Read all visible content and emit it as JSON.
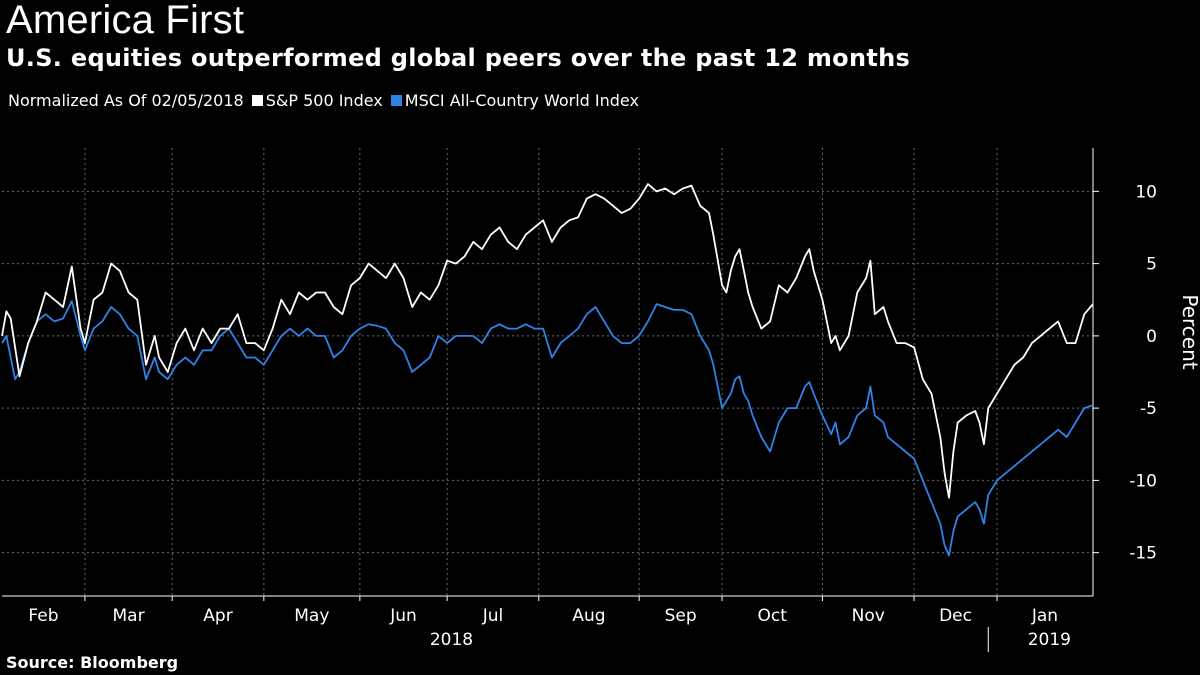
{
  "chart_data": {
    "type": "line",
    "title": "America First",
    "subtitle": "U.S. equities outperformed global peers over the past 12 months",
    "note": "Normalized As Of 02/05/2018",
    "source": "Source: Bloomberg",
    "ylabel": "Percent",
    "xlabel": "",
    "ylim": [
      -18,
      13
    ],
    "yticks": [
      10,
      5,
      0,
      -5,
      -10,
      -15
    ],
    "ytick_labels": [
      "10",
      "5",
      "0",
      "-5",
      "-10",
      "-15"
    ],
    "month_labels": [
      "Feb",
      "Mar",
      "Apr",
      "May",
      "Jun",
      "Jul",
      "Aug",
      "Sep",
      "Oct",
      "Nov",
      "Dec",
      "Jan"
    ],
    "month_start_index": [
      0,
      19,
      39,
      60,
      82,
      102,
      123,
      146,
      165,
      188,
      209,
      228
    ],
    "year_labels": [
      {
        "label": "2018",
        "center_index": 103
      },
      {
        "label": "2019",
        "center_index": 240
      }
    ],
    "year_divider_index": 226,
    "x_count": 251,
    "grid": true,
    "series": [
      {
        "name": "S&P 500 Index",
        "color": "#ffffff",
        "keypoints": [
          [
            0,
            0
          ],
          [
            1,
            1.7
          ],
          [
            2,
            1.2
          ],
          [
            4,
            -2.8
          ],
          [
            6,
            -0.5
          ],
          [
            8,
            1
          ],
          [
            10,
            3
          ],
          [
            12,
            2.5
          ],
          [
            14,
            2
          ],
          [
            16,
            4.8
          ],
          [
            18,
            0.5
          ],
          [
            19,
            -0.5
          ],
          [
            21,
            2.5
          ],
          [
            23,
            3
          ],
          [
            25,
            5
          ],
          [
            27,
            4.5
          ],
          [
            29,
            3
          ],
          [
            31,
            2.5
          ],
          [
            33,
            -2
          ],
          [
            35,
            0
          ],
          [
            36,
            -1.5
          ],
          [
            38,
            -2.5
          ],
          [
            40,
            -0.5
          ],
          [
            42,
            0.5
          ],
          [
            44,
            -1
          ],
          [
            46,
            0.5
          ],
          [
            48,
            -0.5
          ],
          [
            50,
            0.5
          ],
          [
            52,
            0.5
          ],
          [
            54,
            1.5
          ],
          [
            56,
            -0.5
          ],
          [
            58,
            -0.5
          ],
          [
            60,
            -1
          ],
          [
            62,
            0.5
          ],
          [
            64,
            2.5
          ],
          [
            66,
            1.5
          ],
          [
            68,
            3
          ],
          [
            70,
            2.5
          ],
          [
            72,
            3
          ],
          [
            74,
            3
          ],
          [
            76,
            2
          ],
          [
            78,
            1.5
          ],
          [
            80,
            3.5
          ],
          [
            82,
            4
          ],
          [
            84,
            5
          ],
          [
            86,
            4.5
          ],
          [
            88,
            4
          ],
          [
            90,
            5
          ],
          [
            92,
            4
          ],
          [
            94,
            2
          ],
          [
            96,
            3
          ],
          [
            98,
            2.5
          ],
          [
            100,
            3.5
          ],
          [
            102,
            5.2
          ],
          [
            104,
            5
          ],
          [
            106,
            5.5
          ],
          [
            108,
            6.5
          ],
          [
            110,
            6
          ],
          [
            112,
            7
          ],
          [
            114,
            7.5
          ],
          [
            116,
            6.5
          ],
          [
            118,
            6
          ],
          [
            120,
            7
          ],
          [
            122,
            7.5
          ],
          [
            124,
            8
          ],
          [
            126,
            6.5
          ],
          [
            128,
            7.5
          ],
          [
            130,
            8
          ],
          [
            132,
            8.2
          ],
          [
            134,
            9.5
          ],
          [
            136,
            9.8
          ],
          [
            138,
            9.5
          ],
          [
            140,
            9
          ],
          [
            142,
            8.5
          ],
          [
            144,
            8.8
          ],
          [
            146,
            9.5
          ],
          [
            148,
            10.5
          ],
          [
            150,
            10
          ],
          [
            152,
            10.2
          ],
          [
            154,
            9.8
          ],
          [
            156,
            10.2
          ],
          [
            158,
            10.4
          ],
          [
            160,
            9
          ],
          [
            162,
            8.5
          ],
          [
            163,
            7
          ],
          [
            165,
            3.5
          ],
          [
            166,
            3
          ],
          [
            167,
            4.5
          ],
          [
            168,
            5.5
          ],
          [
            169,
            6
          ],
          [
            170,
            4.5
          ],
          [
            171,
            3
          ],
          [
            172,
            2
          ],
          [
            174,
            0.5
          ],
          [
            176,
            1
          ],
          [
            178,
            3.5
          ],
          [
            180,
            3
          ],
          [
            182,
            4
          ],
          [
            184,
            5.5
          ],
          [
            185,
            6
          ],
          [
            186,
            4.5
          ],
          [
            188,
            2.5
          ],
          [
            190,
            -0.5
          ],
          [
            191,
            0
          ],
          [
            192,
            -1
          ],
          [
            194,
            0
          ],
          [
            196,
            3
          ],
          [
            198,
            4
          ],
          [
            199,
            5.2
          ],
          [
            200,
            1.5
          ],
          [
            202,
            2
          ],
          [
            203,
            1
          ],
          [
            205,
            -0.5
          ],
          [
            207,
            -0.5
          ],
          [
            209,
            -0.8
          ],
          [
            211,
            -3
          ],
          [
            213,
            -4
          ],
          [
            215,
            -7
          ],
          [
            216,
            -9.5
          ],
          [
            217,
            -11.2
          ],
          [
            218,
            -8
          ],
          [
            219,
            -6
          ],
          [
            221,
            -5.5
          ],
          [
            223,
            -5.2
          ],
          [
            224,
            -6
          ],
          [
            225,
            -7.5
          ],
          [
            226,
            -5
          ],
          [
            228,
            -4
          ],
          [
            230,
            -3
          ],
          [
            232,
            -2
          ],
          [
            234,
            -1.5
          ],
          [
            236,
            -0.5
          ],
          [
            238,
            0
          ],
          [
            240,
            0.5
          ],
          [
            242,
            1
          ],
          [
            244,
            -0.5
          ],
          [
            246,
            -0.5
          ],
          [
            248,
            1.5
          ],
          [
            250,
            2.2
          ]
        ]
      },
      {
        "name": "MSCI All-Country World Index",
        "color": "#2f82e8",
        "keypoints": [
          [
            0,
            -0.5
          ],
          [
            1,
            0
          ],
          [
            2,
            -1.5
          ],
          [
            3,
            -3
          ],
          [
            4,
            -2.5
          ],
          [
            6,
            -0.5
          ],
          [
            8,
            1
          ],
          [
            10,
            1.5
          ],
          [
            12,
            1
          ],
          [
            14,
            1.2
          ],
          [
            16,
            2.4
          ],
          [
            18,
            0
          ],
          [
            19,
            -1
          ],
          [
            21,
            0.5
          ],
          [
            23,
            1
          ],
          [
            25,
            2
          ],
          [
            27,
            1.5
          ],
          [
            29,
            0.5
          ],
          [
            31,
            0
          ],
          [
            33,
            -3
          ],
          [
            35,
            -1.5
          ],
          [
            36,
            -2.5
          ],
          [
            38,
            -3
          ],
          [
            40,
            -2
          ],
          [
            42,
            -1.5
          ],
          [
            44,
            -2
          ],
          [
            46,
            -1
          ],
          [
            48,
            -1
          ],
          [
            50,
            0
          ],
          [
            52,
            0.5
          ],
          [
            54,
            -0.5
          ],
          [
            56,
            -1.5
          ],
          [
            58,
            -1.5
          ],
          [
            60,
            -2
          ],
          [
            62,
            -1
          ],
          [
            64,
            0
          ],
          [
            66,
            0.5
          ],
          [
            68,
            0
          ],
          [
            70,
            0.5
          ],
          [
            72,
            0
          ],
          [
            74,
            0
          ],
          [
            76,
            -1.5
          ],
          [
            78,
            -1
          ],
          [
            80,
            0
          ],
          [
            82,
            0.5
          ],
          [
            84,
            0.8
          ],
          [
            86,
            0.7
          ],
          [
            88,
            0.5
          ],
          [
            90,
            -0.5
          ],
          [
            92,
            -1
          ],
          [
            94,
            -2.5
          ],
          [
            96,
            -2
          ],
          [
            98,
            -1.5
          ],
          [
            100,
            0
          ],
          [
            102,
            -0.5
          ],
          [
            104,
            0
          ],
          [
            106,
            0
          ],
          [
            108,
            0
          ],
          [
            110,
            -0.5
          ],
          [
            112,
            0.5
          ],
          [
            114,
            0.8
          ],
          [
            116,
            0.5
          ],
          [
            118,
            0.5
          ],
          [
            120,
            0.8
          ],
          [
            122,
            0.5
          ],
          [
            124,
            0.5
          ],
          [
            126,
            -1.5
          ],
          [
            128,
            -0.5
          ],
          [
            130,
            0
          ],
          [
            132,
            0.5
          ],
          [
            134,
            1.5
          ],
          [
            136,
            2
          ],
          [
            138,
            1
          ],
          [
            140,
            0
          ],
          [
            142,
            -0.5
          ],
          [
            144,
            -0.5
          ],
          [
            146,
            0
          ],
          [
            148,
            1
          ],
          [
            150,
            2.2
          ],
          [
            152,
            2
          ],
          [
            154,
            1.8
          ],
          [
            156,
            1.8
          ],
          [
            158,
            1.5
          ],
          [
            160,
            0
          ],
          [
            162,
            -1
          ],
          [
            163,
            -2
          ],
          [
            165,
            -5
          ],
          [
            166,
            -4.5
          ],
          [
            167,
            -4
          ],
          [
            168,
            -3
          ],
          [
            169,
            -2.8
          ],
          [
            170,
            -4
          ],
          [
            171,
            -4.5
          ],
          [
            172,
            -5.5
          ],
          [
            174,
            -7
          ],
          [
            176,
            -8
          ],
          [
            178,
            -6
          ],
          [
            180,
            -5
          ],
          [
            182,
            -5
          ],
          [
            184,
            -3.5
          ],
          [
            185,
            -3.2
          ],
          [
            186,
            -4
          ],
          [
            188,
            -5.5
          ],
          [
            190,
            -6.8
          ],
          [
            191,
            -6
          ],
          [
            192,
            -7.5
          ],
          [
            194,
            -7
          ],
          [
            196,
            -5.5
          ],
          [
            198,
            -5
          ],
          [
            199,
            -3.5
          ],
          [
            200,
            -5.5
          ],
          [
            202,
            -6
          ],
          [
            203,
            -7
          ],
          [
            205,
            -7.5
          ],
          [
            207,
            -8
          ],
          [
            209,
            -8.5
          ],
          [
            211,
            -10
          ],
          [
            213,
            -11.5
          ],
          [
            215,
            -13
          ],
          [
            216,
            -14.5
          ],
          [
            217,
            -15.2
          ],
          [
            218,
            -13.5
          ],
          [
            219,
            -12.5
          ],
          [
            221,
            -12
          ],
          [
            223,
            -11.5
          ],
          [
            224,
            -12
          ],
          [
            225,
            -13
          ],
          [
            226,
            -11
          ],
          [
            228,
            -10
          ],
          [
            230,
            -9.5
          ],
          [
            232,
            -9
          ],
          [
            234,
            -8.5
          ],
          [
            236,
            -8
          ],
          [
            238,
            -7.5
          ],
          [
            240,
            -7
          ],
          [
            242,
            -6.5
          ],
          [
            244,
            -7
          ],
          [
            246,
            -6
          ],
          [
            248,
            -5
          ],
          [
            250,
            -4.8
          ]
        ]
      }
    ]
  }
}
